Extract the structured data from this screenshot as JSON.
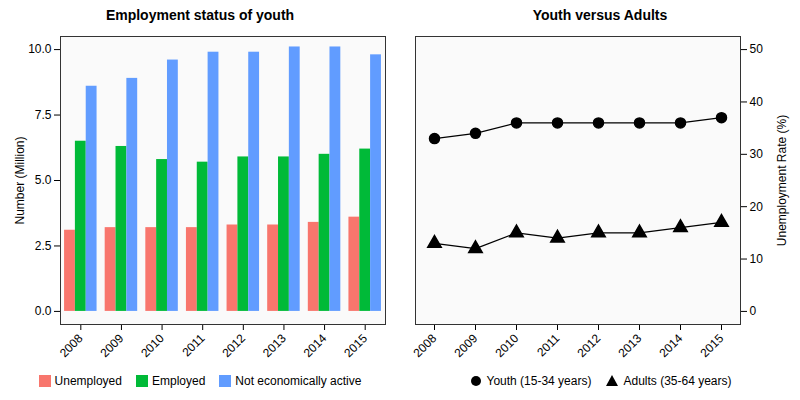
{
  "chart_data": [
    {
      "type": "bar",
      "title": "Employment status of youth",
      "ylabel": "Number (Million)",
      "categories": [
        "2008",
        "2009",
        "2010",
        "2011",
        "2012",
        "2013",
        "2014",
        "2015"
      ],
      "series": [
        {
          "name": "Unemployed",
          "color": "#F8766D",
          "values": [
            3.1,
            3.2,
            3.2,
            3.2,
            3.3,
            3.3,
            3.4,
            3.6
          ]
        },
        {
          "name": "Employed",
          "color": "#00BA38",
          "values": [
            6.5,
            6.3,
            5.8,
            5.7,
            5.9,
            5.9,
            6.0,
            6.2
          ]
        },
        {
          "name": "Not economically active",
          "color": "#619CFF",
          "values": [
            8.6,
            8.9,
            9.6,
            9.9,
            9.9,
            10.1,
            10.1,
            9.8
          ]
        }
      ],
      "ylim": [
        -0.5,
        10.5
      ],
      "yticks": [
        {
          "value": 0,
          "label": "0.0"
        },
        2.5,
        {
          "value": 5,
          "label": "5.0"
        },
        7.5,
        {
          "value": 10,
          "label": "10.0"
        }
      ],
      "grid": true,
      "legend": "bottom"
    },
    {
      "type": "line",
      "title": "Youth versus Adults",
      "ylabel": "Unemployment Rate (%)",
      "categories": [
        "2008",
        "2009",
        "2010",
        "2011",
        "2012",
        "2013",
        "2014",
        "2015"
      ],
      "series": [
        {
          "name": "Youth (15-34 years)",
          "color": "#000000",
          "marker": "circle",
          "values": [
            33,
            34,
            36,
            36,
            36,
            36,
            36,
            37
          ]
        },
        {
          "name": "Adults (35-64 years)",
          "color": "#000000",
          "marker": "triangle",
          "values": [
            13,
            12,
            15,
            14,
            15,
            15,
            16,
            17
          ]
        }
      ],
      "ylim": [
        -2.5,
        52.5
      ],
      "yticks": [
        0,
        10,
        20,
        30,
        40,
        50
      ],
      "grid": true,
      "legend": "bottom"
    }
  ]
}
